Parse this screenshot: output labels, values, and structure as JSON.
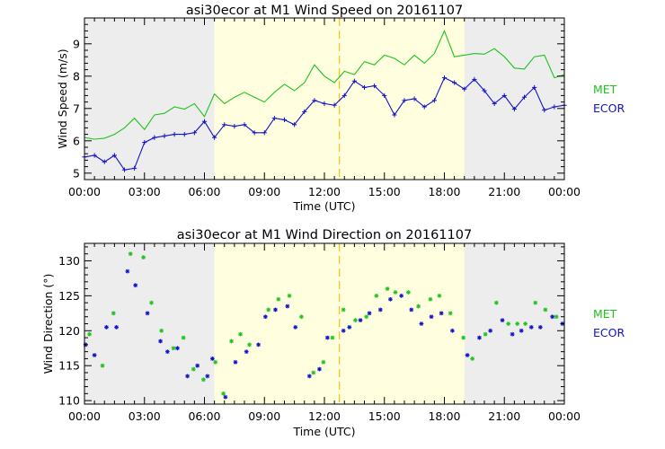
{
  "colors": {
    "met": "#1ec31e",
    "ecor": "#1212c8",
    "night_shade": "#ededed",
    "day_shade": "#ffffe0",
    "noon_line": "#f5c518",
    "axis": "#000000"
  },
  "chart_data": [
    {
      "type": "line",
      "title": "asi30ecor at M1 Wind Speed on 20161107",
      "xlabel": "Time (UTC)",
      "ylabel": "Wind Speed (m/s)",
      "xlim": [
        0,
        24
      ],
      "ylim": [
        4.8,
        9.8
      ],
      "x_ticks": [
        0,
        3,
        6,
        9,
        12,
        15,
        18,
        21,
        24
      ],
      "x_tick_labels": [
        "00:00",
        "03:00",
        "06:00",
        "09:00",
        "12:00",
        "15:00",
        "18:00",
        "21:00",
        "00:00"
      ],
      "y_ticks": [
        5,
        6,
        7,
        8,
        9
      ],
      "y_tick_labels": [
        "5",
        "6",
        "7",
        "8",
        "9"
      ],
      "shading": [
        {
          "from": 0,
          "to": 6.5,
          "kind": "night"
        },
        {
          "from": 6.5,
          "to": 19.0,
          "kind": "day"
        },
        {
          "from": 19.0,
          "to": 24,
          "kind": "night"
        }
      ],
      "solar_noon": 12.75,
      "legend": [
        {
          "name": "MET",
          "color": "#1ec31e"
        },
        {
          "name": "ECOR",
          "color": "#1212c8"
        }
      ],
      "series": [
        {
          "name": "MET",
          "color": "#1ec31e",
          "marker": "none",
          "x": [
            0,
            0.5,
            1,
            1.5,
            2,
            2.5,
            3,
            3.5,
            4,
            4.5,
            5,
            5.5,
            6,
            6.5,
            7,
            7.5,
            8,
            8.5,
            9,
            9.5,
            10,
            10.5,
            11,
            11.5,
            12,
            12.5,
            13,
            13.5,
            14,
            14.5,
            15,
            15.5,
            16,
            16.5,
            17,
            17.5,
            18,
            18.5,
            19,
            19.5,
            20,
            20.5,
            21,
            21.5,
            22,
            22.5,
            23,
            23.5,
            24
          ],
          "values": [
            6.1,
            6.05,
            6.08,
            6.2,
            6.4,
            6.7,
            6.35,
            6.8,
            6.85,
            7.05,
            6.98,
            7.15,
            6.75,
            7.45,
            7.15,
            7.35,
            7.5,
            7.35,
            7.2,
            7.5,
            7.75,
            7.55,
            7.8,
            8.35,
            8.0,
            7.8,
            8.15,
            8.05,
            8.45,
            8.35,
            8.65,
            8.55,
            8.35,
            8.65,
            8.4,
            8.7,
            9.4,
            8.6,
            8.65,
            8.7,
            8.68,
            8.85,
            8.6,
            8.25,
            8.22,
            8.6,
            8.65,
            7.95,
            8.05
          ]
        },
        {
          "name": "ECOR",
          "color": "#1212c8",
          "marker": "plus",
          "x": [
            0,
            0.5,
            1,
            1.5,
            2,
            2.5,
            3,
            3.5,
            4,
            4.5,
            5,
            5.5,
            6,
            6.5,
            7,
            7.5,
            8,
            8.5,
            9,
            9.5,
            10,
            10.5,
            11,
            11.5,
            12,
            12.5,
            13,
            13.5,
            14,
            14.5,
            15,
            15.5,
            16,
            16.5,
            17,
            17.5,
            18,
            18.5,
            19,
            19.5,
            20,
            20.5,
            21,
            21.5,
            22,
            22.5,
            23,
            23.5,
            24
          ],
          "values": [
            5.5,
            5.55,
            5.35,
            5.55,
            5.1,
            5.15,
            5.95,
            6.1,
            6.15,
            6.2,
            6.2,
            6.25,
            6.6,
            6.1,
            6.5,
            6.45,
            6.5,
            6.25,
            6.25,
            6.7,
            6.65,
            6.5,
            6.9,
            7.25,
            7.15,
            7.1,
            7.4,
            7.85,
            7.65,
            7.7,
            7.4,
            6.8,
            7.25,
            7.3,
            7.05,
            7.25,
            7.95,
            7.8,
            7.6,
            7.9,
            7.55,
            7.15,
            7.4,
            6.98,
            7.35,
            7.65,
            6.95,
            7.05,
            7.1
          ]
        }
      ]
    },
    {
      "type": "scatter",
      "title": "asi30ecor at M1 Wind Direction on 20161107",
      "xlabel": "Time (UTC)",
      "ylabel": "Wind Direction (°)",
      "xlim": [
        0,
        24
      ],
      "ylim": [
        109.5,
        132.5
      ],
      "x_ticks": [
        0,
        3,
        6,
        9,
        12,
        15,
        18,
        21,
        24
      ],
      "x_tick_labels": [
        "00:00",
        "03:00",
        "06:00",
        "09:00",
        "12:00",
        "15:00",
        "18:00",
        "21:00",
        "00:00"
      ],
      "y_ticks": [
        110,
        115,
        120,
        125,
        130
      ],
      "y_tick_labels": [
        "110",
        "115",
        "120",
        "125",
        "130"
      ],
      "shading": [
        {
          "from": 0,
          "to": 6.5,
          "kind": "night"
        },
        {
          "from": 6.5,
          "to": 19.0,
          "kind": "day"
        },
        {
          "from": 19.0,
          "to": 24,
          "kind": "night"
        }
      ],
      "solar_noon": 12.75,
      "legend": [
        {
          "name": "MET",
          "color": "#1ec31e"
        },
        {
          "name": "ECOR",
          "color": "#1212c8"
        }
      ],
      "series": [
        {
          "name": "MET",
          "color": "#1ec31e",
          "marker": "star",
          "x": [
            0.25,
            0.9,
            1.45,
            2.3,
            2.95,
            3.35,
            3.85,
            4.45,
            4.95,
            5.45,
            5.95,
            6.55,
            6.95,
            7.35,
            7.8,
            8.25,
            9.2,
            9.7,
            10.25,
            10.85,
            11.45,
            11.95,
            12.4,
            12.95,
            13.55,
            14.1,
            14.6,
            15.15,
            15.55,
            16.2,
            16.7,
            17.3,
            17.75,
            18.3,
            18.95,
            19.4,
            20.05,
            20.6,
            21.2,
            21.65,
            22.05,
            22.55,
            23.05,
            23.6
          ],
          "values": [
            119.5,
            115.0,
            122.5,
            131.0,
            130.5,
            124.0,
            120.0,
            117.5,
            119.0,
            114.5,
            113.0,
            115.5,
            111.0,
            118.5,
            119.5,
            118.0,
            123.0,
            124.5,
            125.0,
            122.0,
            114.0,
            115.5,
            119.0,
            123.0,
            121.5,
            122.0,
            125.0,
            126.0,
            125.5,
            125.5,
            123.5,
            124.5,
            125.0,
            122.5,
            119.0,
            116.0,
            119.5,
            124.0,
            121.0,
            121.0,
            121.0,
            124.0,
            123.0,
            122.0
          ]
        },
        {
          "name": "ECOR",
          "color": "#1212c8",
          "marker": "star",
          "x": [
            0.05,
            0.5,
            1.1,
            1.6,
            2.15,
            2.55,
            3.15,
            3.8,
            4.15,
            4.65,
            5.15,
            5.65,
            6.15,
            6.4,
            7.05,
            7.55,
            8.1,
            8.7,
            9.05,
            9.55,
            10.15,
            10.55,
            11.25,
            11.75,
            12.15,
            12.95,
            13.25,
            13.8,
            14.25,
            14.8,
            15.3,
            15.85,
            16.35,
            16.85,
            17.35,
            17.85,
            18.4,
            19.15,
            19.75,
            20.3,
            20.9,
            21.4,
            21.85,
            22.35,
            22.8,
            23.4,
            23.9
          ],
          "values": [
            118.0,
            116.5,
            120.5,
            120.5,
            128.5,
            126.5,
            122.5,
            118.5,
            117.0,
            117.5,
            113.5,
            115.0,
            113.5,
            116.0,
            110.5,
            115.5,
            117.0,
            118.0,
            122.0,
            123.0,
            123.5,
            120.5,
            113.5,
            114.5,
            119.0,
            120.0,
            120.5,
            121.5,
            122.5,
            123.0,
            124.5,
            125.0,
            123.0,
            121.0,
            122.0,
            122.5,
            120.0,
            116.5,
            119.0,
            120.0,
            121.5,
            119.5,
            120.0,
            120.5,
            120.5,
            122.0,
            121.0
          ]
        }
      ]
    }
  ]
}
